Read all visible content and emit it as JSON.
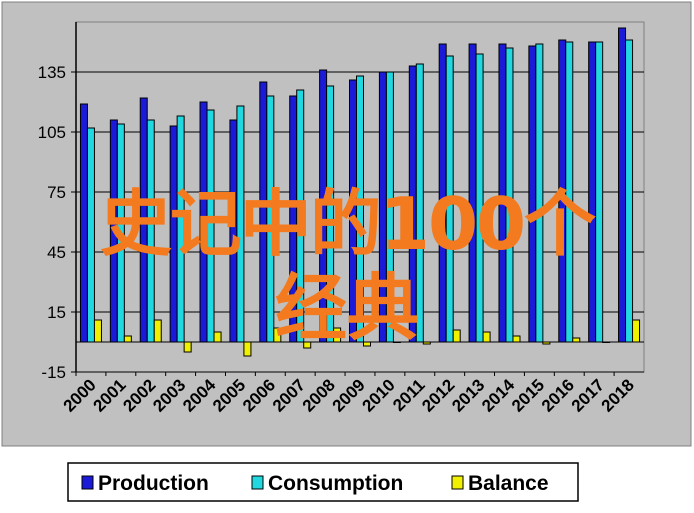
{
  "chart_data": {
    "type": "bar",
    "categories": [
      "2000",
      "2001",
      "2002",
      "2003",
      "2004",
      "2005",
      "2006",
      "2007",
      "2008",
      "2009",
      "2010",
      "2011",
      "2012",
      "2013",
      "2014",
      "2015",
      "2016",
      "2017",
      "2018"
    ],
    "series": [
      {
        "name": "Production",
        "color": "#1a1ad8",
        "values": [
          119,
          111,
          122,
          108,
          120,
          111,
          130,
          123,
          136,
          131,
          135,
          138,
          149,
          149,
          149,
          148,
          151,
          150,
          157
        ]
      },
      {
        "name": "Consumption",
        "color": "#22d8e0",
        "values": [
          107,
          109,
          111,
          113,
          116,
          118,
          123,
          126,
          128,
          133,
          135,
          139,
          143,
          144,
          147,
          149,
          150,
          150,
          151
        ]
      },
      {
        "name": "Balance",
        "color": "#f0f000",
        "values": [
          11,
          3,
          11,
          -5,
          5,
          -7,
          7,
          -3,
          7,
          -2,
          0,
          -1,
          6,
          5,
          3,
          -1,
          2,
          0,
          11
        ]
      }
    ],
    "yticks": [
      -15,
      15,
      45,
      75,
      105,
      135
    ],
    "ylim": [
      -15,
      160
    ],
    "grid": true,
    "legend": "bottom",
    "title": "",
    "xlabel": "",
    "ylabel": ""
  },
  "overlay": {
    "line1": "史记中的100个",
    "line2": "经典"
  },
  "colors": {
    "outer_background": "#c0c0c0",
    "plot_background": "#c0c0c0",
    "overlay_text": "#f47a1f"
  }
}
